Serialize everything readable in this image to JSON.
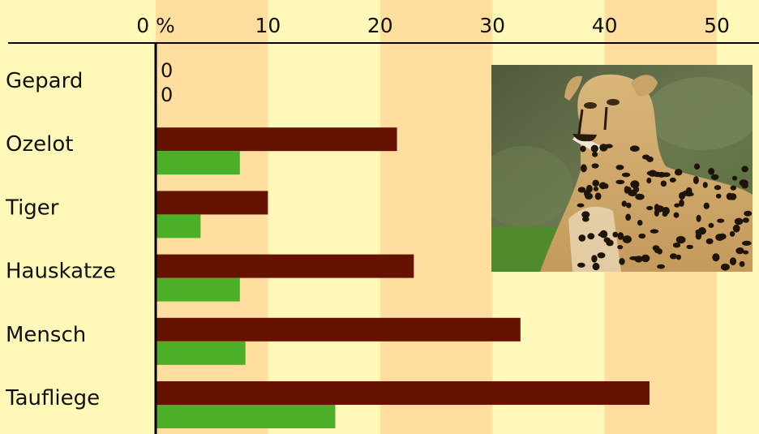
{
  "chart_data": {
    "type": "bar",
    "orientation": "horizontal",
    "title": "",
    "xlabel": "",
    "ylabel": "",
    "xlim": [
      0,
      50
    ],
    "x_ticks": [
      "0 %",
      "10",
      "20",
      "30",
      "40",
      "50"
    ],
    "x_tick_values": [
      0,
      10,
      20,
      30,
      40,
      50
    ],
    "grid": "alternating vertical bands",
    "categories": [
      "Gepard",
      "Ozelot",
      "Tiger",
      "Hauskatze",
      "Mensch",
      "Taufliege"
    ],
    "series": [
      {
        "values": [
          0,
          21.5,
          10,
          23,
          32.5,
          44
        ]
      },
      {
        "values": [
          0,
          7.5,
          4,
          7.5,
          8,
          16
        ]
      }
    ],
    "annotations": {
      "gepard_values": [
        "0",
        "0"
      ]
    },
    "colors": {
      "background": "#fff8b8",
      "band": "#ffdea0",
      "series1": "#661200",
      "series2": "#4daf28",
      "axis": "#000000"
    },
    "image": "cheetah-photo"
  }
}
